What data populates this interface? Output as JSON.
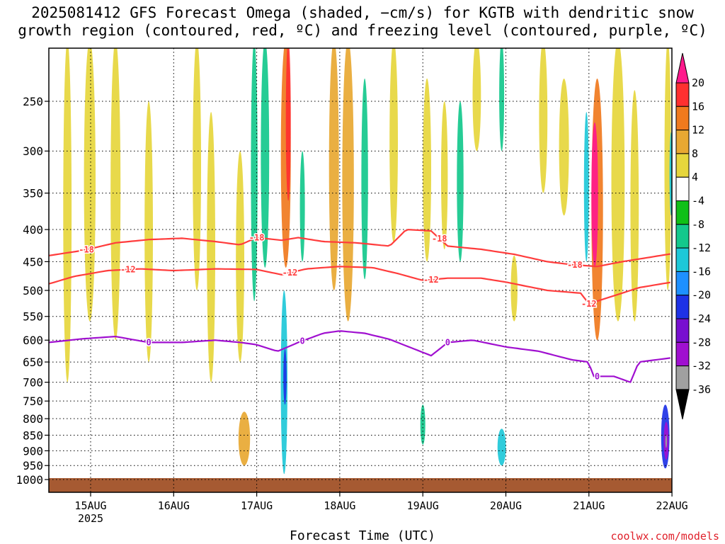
{
  "title_line1": "2025081412 GFS Forecast Omega (shaded, −cm/s) for KGTB with dendritic snow",
  "title_line2": "growth region (contoured, red, ºC) and freezing level (contoured, purple, ºC)",
  "xlabel": "Forecast Time (UTC)",
  "credit": "coolwx.com/models",
  "colors": {
    "dsgz": "#ff3c3c",
    "freezing": "#a010d0",
    "ground": "#a65a32"
  },
  "chart_data": {
    "type": "heatmap",
    "title": "2025081412 GFS Forecast Omega (shaded, −cm/s) for KGTB with dendritic snow growth region (contoured, red, ºC) and freezing level (contoured, purple, ºC)",
    "xlabel": "Forecast Time (UTC)",
    "ylabel": "",
    "x_ticks": [
      "15AUG",
      "16AUG",
      "17AUG",
      "18AUG",
      "19AUG",
      "20AUG",
      "21AUG",
      "22AUG"
    ],
    "x_tick_sub": [
      "2025",
      "",
      "",
      "",
      "",
      "",
      "",
      ""
    ],
    "x_tick_day": [
      15,
      16,
      17,
      18,
      19,
      20,
      21,
      22
    ],
    "xlim_day": [
      14.5,
      22.0
    ],
    "y_ticks": [
      250,
      300,
      350,
      400,
      450,
      500,
      550,
      600,
      650,
      700,
      750,
      800,
      850,
      900,
      950,
      1000
    ],
    "ylim_hpa": [
      1015,
      200
    ],
    "y_scale": "log pressure",
    "grid": true,
    "colorbar": {
      "labels": [
        "20",
        "16",
        "12",
        "8",
        "4",
        "-4",
        "-8",
        "-12",
        "-16",
        "-20",
        "-24",
        "-28",
        "-32",
        "-36"
      ],
      "colors": [
        "#ff1a8c",
        "#ff3030",
        "#f07a1e",
        "#e8a832",
        "#e6d63c",
        "#ffffff",
        "#10c018",
        "#14c88c",
        "#1ec8d8",
        "#1e90ff",
        "#1e32e6",
        "#7810d0",
        "#a010d0",
        "#a0a0a0"
      ],
      "extend_top": "#ff1a8c",
      "extend_bottom": "#000000"
    },
    "omega_blobs": [
      {
        "day": 14.72,
        "p1": 700,
        "p2": 200,
        "w": 0.05,
        "v": 4
      },
      {
        "day": 14.99,
        "p1": 560,
        "p2": 200,
        "w": 0.07,
        "v": 6
      },
      {
        "day": 15.3,
        "p1": 600,
        "p2": 200,
        "w": 0.06,
        "v": 6
      },
      {
        "day": 15.7,
        "p1": 650,
        "p2": 250,
        "w": 0.05,
        "v": 4
      },
      {
        "day": 16.28,
        "p1": 500,
        "p2": 200,
        "w": 0.05,
        "v": 4
      },
      {
        "day": 16.45,
        "p1": 700,
        "p2": 260,
        "w": 0.05,
        "v": 4
      },
      {
        "day": 16.8,
        "p1": 650,
        "p2": 300,
        "w": 0.05,
        "v": 4
      },
      {
        "day": 16.85,
        "p1": 950,
        "p2": 780,
        "w": 0.07,
        "v": 8
      },
      {
        "day": 16.97,
        "p1": 520,
        "p2": 200,
        "w": 0.04,
        "v": -8
      },
      {
        "day": 17.1,
        "p1": 460,
        "p2": 200,
        "w": 0.05,
        "v": -10
      },
      {
        "day": 17.35,
        "p1": 460,
        "p2": 200,
        "w": 0.06,
        "v": 12
      },
      {
        "day": 17.38,
        "p1": 360,
        "p2": 200,
        "w": 0.03,
        "v": 18
      },
      {
        "day": 17.33,
        "p1": 980,
        "p2": 500,
        "w": 0.04,
        "v": -14
      },
      {
        "day": 17.34,
        "p1": 760,
        "p2": 620,
        "w": 0.02,
        "v": -22
      },
      {
        "day": 17.55,
        "p1": 450,
        "p2": 300,
        "w": 0.03,
        "v": -8
      },
      {
        "day": 17.93,
        "p1": 500,
        "p2": 200,
        "w": 0.06,
        "v": 8
      },
      {
        "day": 18.1,
        "p1": 560,
        "p2": 200,
        "w": 0.07,
        "v": 8
      },
      {
        "day": 18.3,
        "p1": 480,
        "p2": 230,
        "w": 0.04,
        "v": -8
      },
      {
        "day": 18.65,
        "p1": 420,
        "p2": 200,
        "w": 0.05,
        "v": 4
      },
      {
        "day": 19.05,
        "p1": 450,
        "p2": 230,
        "w": 0.05,
        "v": 4
      },
      {
        "day": 19.0,
        "p1": 880,
        "p2": 760,
        "w": 0.03,
        "v": -8
      },
      {
        "day": 19.26,
        "p1": 430,
        "p2": 250,
        "w": 0.04,
        "v": 4
      },
      {
        "day": 19.45,
        "p1": 450,
        "p2": 250,
        "w": 0.04,
        "v": -8
      },
      {
        "day": 19.65,
        "p1": 300,
        "p2": 200,
        "w": 0.05,
        "v": 4
      },
      {
        "day": 19.95,
        "p1": 300,
        "p2": 200,
        "w": 0.03,
        "v": -8
      },
      {
        "day": 19.95,
        "p1": 950,
        "p2": 830,
        "w": 0.05,
        "v": -12
      },
      {
        "day": 20.1,
        "p1": 560,
        "p2": 440,
        "w": 0.04,
        "v": 4
      },
      {
        "day": 20.45,
        "p1": 350,
        "p2": 200,
        "w": 0.05,
        "v": 4
      },
      {
        "day": 20.7,
        "p1": 380,
        "p2": 230,
        "w": 0.06,
        "v": 4
      },
      {
        "day": 20.97,
        "p1": 450,
        "p2": 260,
        "w": 0.03,
        "v": -12
      },
      {
        "day": 21.1,
        "p1": 600,
        "p2": 230,
        "w": 0.07,
        "v": 12
      },
      {
        "day": 21.07,
        "p1": 460,
        "p2": 270,
        "w": 0.04,
        "v": 22
      },
      {
        "day": 21.35,
        "p1": 560,
        "p2": 200,
        "w": 0.08,
        "v": 6
      },
      {
        "day": 21.55,
        "p1": 560,
        "p2": 240,
        "w": 0.05,
        "v": 6
      },
      {
        "day": 21.95,
        "p1": 500,
        "p2": 200,
        "w": 0.04,
        "v": 4
      },
      {
        "day": 21.99,
        "p1": 380,
        "p2": 280,
        "w": 0.02,
        "v": -12
      },
      {
        "day": 21.92,
        "p1": 960,
        "p2": 760,
        "w": 0.05,
        "v": -20
      },
      {
        "day": 21.93,
        "p1": 930,
        "p2": 810,
        "w": 0.03,
        "v": -28
      },
      {
        "day": 21.93,
        "p1": 890,
        "p2": 850,
        "w": 0.01,
        "v": -34
      }
    ],
    "contours": [
      {
        "name": "dsgz_-18",
        "level": "-18",
        "color_key": "dsgz",
        "label_days": [
          14.95,
          17.0,
          19.2,
          20.83
        ],
        "points": [
          [
            14.5,
            440
          ],
          [
            14.9,
            432
          ],
          [
            15.3,
            420
          ],
          [
            15.7,
            415
          ],
          [
            16.1,
            413
          ],
          [
            16.5,
            418
          ],
          [
            16.8,
            423
          ],
          [
            17.0,
            412
          ],
          [
            17.3,
            416
          ],
          [
            17.5,
            412
          ],
          [
            17.8,
            418
          ],
          [
            18.2,
            420
          ],
          [
            18.6,
            425
          ],
          [
            18.8,
            400
          ],
          [
            19.1,
            402
          ],
          [
            19.3,
            425
          ],
          [
            19.7,
            430
          ],
          [
            20.1,
            438
          ],
          [
            20.5,
            450
          ],
          [
            20.8,
            455
          ],
          [
            21.1,
            458
          ],
          [
            21.4,
            450
          ],
          [
            22.0,
            437
          ]
        ]
      },
      {
        "name": "dsgz_-12",
        "level": "-12",
        "color_key": "dsgz",
        "label_days": [
          15.45,
          17.4,
          19.1,
          21.0
        ],
        "points": [
          [
            14.5,
            488
          ],
          [
            14.8,
            475
          ],
          [
            15.2,
            465
          ],
          [
            15.6,
            462
          ],
          [
            16.0,
            465
          ],
          [
            16.5,
            462
          ],
          [
            17.0,
            463
          ],
          [
            17.3,
            472
          ],
          [
            17.6,
            462
          ],
          [
            18.0,
            458
          ],
          [
            18.4,
            460
          ],
          [
            18.7,
            470
          ],
          [
            19.0,
            482
          ],
          [
            19.3,
            478
          ],
          [
            19.7,
            478
          ],
          [
            20.0,
            485
          ],
          [
            20.5,
            500
          ],
          [
            20.9,
            505
          ],
          [
            21.0,
            525
          ],
          [
            21.3,
            510
          ],
          [
            21.6,
            495
          ],
          [
            22.0,
            485
          ]
        ]
      },
      {
        "name": "freezing_0",
        "level": "0",
        "color_key": "freezing",
        "label_days": [
          15.7,
          17.55,
          19.3,
          21.1
        ],
        "points": [
          [
            14.5,
            605
          ],
          [
            14.9,
            597
          ],
          [
            15.3,
            592
          ],
          [
            15.7,
            605
          ],
          [
            16.1,
            605
          ],
          [
            16.5,
            600
          ],
          [
            16.8,
            605
          ],
          [
            17.0,
            610
          ],
          [
            17.25,
            625
          ],
          [
            17.5,
            605
          ],
          [
            17.8,
            585
          ],
          [
            18.0,
            580
          ],
          [
            18.3,
            585
          ],
          [
            18.6,
            598
          ],
          [
            18.9,
            620
          ],
          [
            19.1,
            635
          ],
          [
            19.3,
            605
          ],
          [
            19.6,
            600
          ],
          [
            20.0,
            615
          ],
          [
            20.4,
            625
          ],
          [
            20.8,
            645
          ],
          [
            21.0,
            650
          ],
          [
            21.05,
            685
          ],
          [
            21.3,
            685
          ],
          [
            21.5,
            700
          ],
          [
            21.6,
            650
          ],
          [
            22.0,
            640
          ]
        ]
      }
    ]
  }
}
